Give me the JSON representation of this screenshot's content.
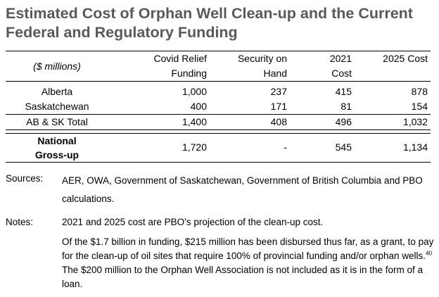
{
  "title": {
    "line1": "Estimated Cost of Orphan Well Clean-up and the Current",
    "line2": "Federal and Regulatory Funding"
  },
  "table": {
    "unit_label": "($ millions)",
    "headers": [
      {
        "line1": "Covid Relief",
        "line2": "Funding"
      },
      {
        "line1": "Security on",
        "line2": "Hand"
      },
      {
        "line1": "2021",
        "line2": "Cost"
      },
      {
        "line1": "2025 Cost",
        "line2": ""
      }
    ],
    "rows": [
      {
        "label": "Alberta",
        "values": [
          "1,000",
          "237",
          "415",
          "878"
        ]
      },
      {
        "label": "Saskatchewan",
        "values": [
          "400",
          "171",
          "81",
          "154"
        ]
      },
      {
        "label": "AB & SK Total",
        "values": [
          "1,400",
          "408",
          "496",
          "1,032"
        ]
      }
    ],
    "national": {
      "label_line1": "National",
      "label_line2": "Gross-up",
      "values": [
        "1,720",
        "-",
        "545",
        "1,134"
      ]
    }
  },
  "sources": {
    "label": "Sources:",
    "text": "AER, OWA, Government of Saskatchewan, Government of British Columbia and PBO calculations."
  },
  "notes": {
    "label": "Notes:",
    "para1": "2021 and 2025 cost are PBO’s projection of the clean-up cost.",
    "para2_before": "Of the $1.7 billion in funding, $215 million has been disbursed thus far, as a grant, to pay for the clean-up of oil sites that require 100% of provincial funding and/or orphan wells.",
    "para2_sup": "40",
    "para2_after": " The $200 million to the Orphan Well Association is not included as it is in the form of a loan."
  }
}
